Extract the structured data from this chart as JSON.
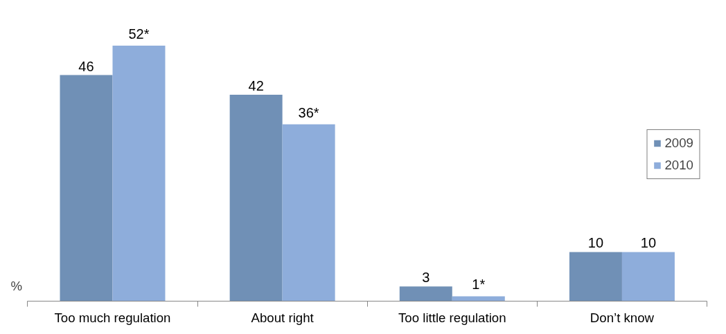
{
  "chart_data": {
    "type": "bar",
    "ylabel": "%",
    "categories": [
      "Too much regulation",
      "About right",
      "Too little regulation",
      "Don’t know"
    ],
    "series": [
      {
        "name": "2009",
        "color": "#7090b6",
        "values": [
          46,
          42,
          3,
          10
        ],
        "value_labels": [
          "46",
          "42",
          "3",
          "10"
        ]
      },
      {
        "name": "2010",
        "color": "#8eaddb",
        "values": [
          52,
          36,
          1,
          10
        ],
        "value_labels": [
          "52*",
          "36*",
          "1*",
          "10"
        ]
      }
    ],
    "legend": "right",
    "grid": false
  }
}
